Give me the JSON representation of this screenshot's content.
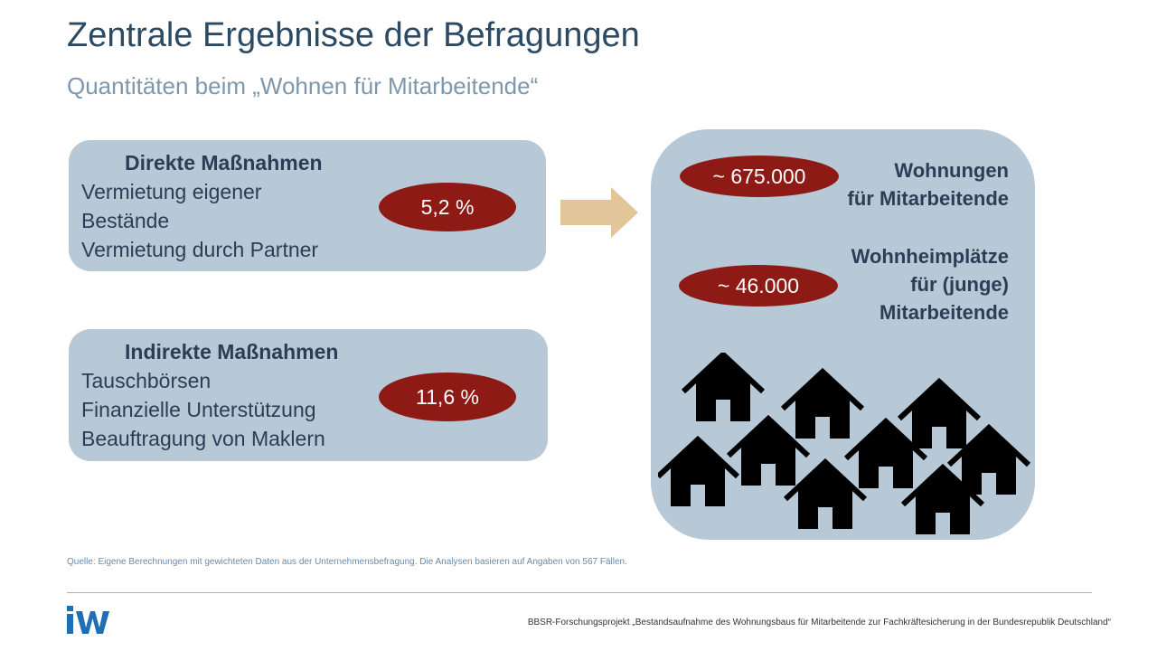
{
  "header": {
    "title": "Zentrale Ergebnisse der Befragungen",
    "subtitle": "Quantitäten beim „Wohnen für Mitarbeitende“"
  },
  "direct": {
    "heading": "Direkte Maßnahmen",
    "lines": [
      "Vermietung eigener",
      "Bestände",
      "Vermietung durch Partner"
    ],
    "value": "5,2 %"
  },
  "indirect": {
    "heading": "Indirekte Maßnahmen",
    "lines": [
      "Tauschbörsen",
      "Finanzielle Unterstützung",
      "Beauftragung von Maklern"
    ],
    "value": "11,6 %"
  },
  "result": {
    "apartments_value": "~ 675.000",
    "apartments_label": [
      "Wohnungen",
      "für Mitarbeitende"
    ],
    "dorm_value": "~ 46.000",
    "dorm_label": [
      "Wohnheimplätze",
      "für (junge)",
      "Mitarbeitende"
    ]
  },
  "source": "Quelle: Eigene Berechnungen mit gewichteten Daten aus der Unternehmensbefragung. Die Analysen basieren auf Angaben von 567 Fällen.",
  "footer": "BBSR-Forschungsprojekt „Bestandsaufnahme des Wohnungsbaus für Mitarbeitende zur Fachkräftesicherung in der Bundesrepublik Deutschland“",
  "logo": "IW",
  "icons": {
    "arrow": "arrow-right-icon",
    "house": "house-icon"
  },
  "colors": {
    "title": "#2c4a63",
    "subtitle": "#7d97ad",
    "box": "#b7c8d6",
    "ellipse": "#8e1a16",
    "arrow": "#e2c69a",
    "logo": "#1f6fb5"
  }
}
